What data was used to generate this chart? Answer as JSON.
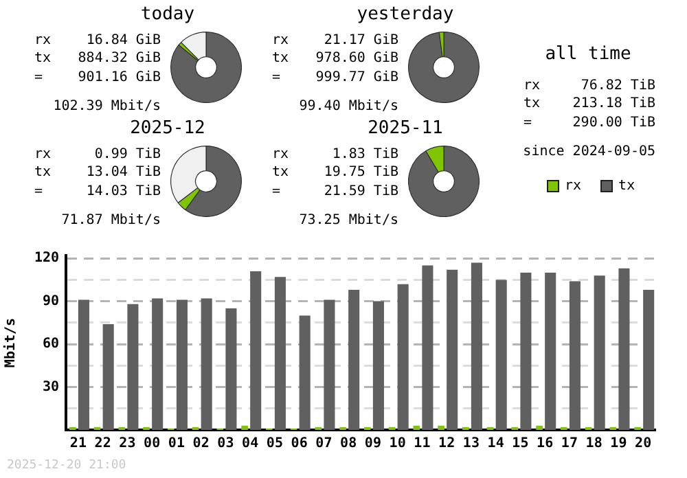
{
  "chart_data": [
    {
      "type": "donut",
      "title": "today",
      "categories": [
        null,
        null,
        null
      ],
      "values": [
        85.9,
        1.6,
        12.5
      ],
      "colors": [
        "#606060",
        "#7fc600",
        "#f0f0f0"
      ],
      "annotations": [
        "rx 16.84 GiB",
        "tx 884.32 GiB",
        "= 901.16 GiB",
        "102.39 Mbit/s"
      ]
    },
    {
      "type": "donut",
      "title": "yesterday",
      "categories": [
        null,
        null
      ],
      "values": [
        97.9,
        2.1
      ],
      "colors": [
        "#606060",
        "#7fc600"
      ],
      "annotations": [
        "rx 21.17 GiB",
        "tx 978.60 GiB",
        "= 999.77 GiB",
        "99.40 Mbit/s"
      ]
    },
    {
      "type": "donut",
      "title": "2025-12",
      "categories": [
        null,
        null,
        null
      ],
      "values": [
        60,
        4.6,
        35.4
      ],
      "colors": [
        "#606060",
        "#7fc600",
        "#f0f0f0"
      ],
      "annotations": [
        "rx 0.99 TiB",
        "tx 13.04 TiB",
        "= 14.03 TiB",
        "71.87 Mbit/s"
      ]
    },
    {
      "type": "donut",
      "title": "2025-11",
      "categories": [
        null,
        null
      ],
      "values": [
        91.5,
        8.5
      ],
      "colors": [
        "#606060",
        "#7fc600"
      ],
      "annotations": [
        "rx 1.83 TiB",
        "tx 19.75 TiB",
        "= 21.59 TiB",
        "73.25 Mbit/s"
      ]
    },
    {
      "type": "other",
      "title": "all time",
      "annotations": [
        "rx 76.82 TiB",
        "tx 213.18 TiB",
        "= 290.00 TiB",
        "since 2024-09-05"
      ]
    },
    {
      "type": "bar",
      "ylabel": "Mbit/s",
      "categories": [
        "21",
        "22",
        "23",
        "00",
        "01",
        "02",
        "03",
        "04",
        "05",
        "06",
        "07",
        "08",
        "09",
        "10",
        "11",
        "12",
        "13",
        "14",
        "15",
        "16",
        "17",
        "18",
        "19",
        "20"
      ],
      "series": [
        {
          "name": "rx",
          "color": "#7fc600",
          "values": [
            2,
            2,
            2,
            2,
            1,
            2,
            1,
            3,
            1,
            1,
            2,
            2,
            2,
            2,
            3,
            3,
            2,
            2,
            2,
            3,
            2,
            2,
            2,
            2
          ]
        },
        {
          "name": "tx",
          "color": "#606060",
          "values": [
            91,
            74,
            88,
            92,
            91,
            92,
            85,
            111,
            107,
            80,
            91,
            98,
            90,
            102,
            115,
            112,
            117,
            105,
            110,
            110,
            104,
            108,
            113,
            98
          ]
        }
      ],
      "ylim": [
        0,
        122
      ],
      "yticks": [
        {
          "value": 15,
          "label": null
        },
        30,
        {
          "value": 45,
          "label": null
        },
        60,
        {
          "value": 75,
          "label": null
        },
        90,
        {
          "value": 105,
          "label": null
        },
        120
      ],
      "grid": "y",
      "legend": "top right",
      "annotations": [
        "2025-12-20 21:00"
      ]
    }
  ]
}
